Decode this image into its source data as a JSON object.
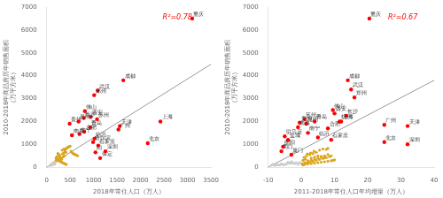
{
  "chart_data": [
    {
      "type": "scatter",
      "xlabel": "2018年常住人口（万人）",
      "ylabel": "2010-2018年商品房历年销售面积\n（万平方米）",
      "xlim": [
        0,
        3500
      ],
      "ylim": [
        0,
        7000
      ],
      "xticks": [
        0,
        500,
        1000,
        1500,
        2000,
        2500,
        3000,
        3500
      ],
      "yticks": [
        0,
        1000,
        2000,
        3000,
        4000,
        5000,
        6000,
        7000
      ],
      "grid": false,
      "series": [
        {
          "color": "#cccccc",
          "x": [
            100,
            120,
            130,
            140,
            150,
            160,
            170,
            80,
            90,
            110,
            125,
            135,
            145,
            155,
            165,
            175,
            85,
            95,
            105,
            115
          ],
          "values": [
            100,
            150,
            120,
            200,
            180,
            160,
            130,
            80,
            90,
            110,
            140,
            170,
            190,
            200,
            210,
            220,
            100,
            120,
            130,
            140
          ]
        },
        {
          "color": "#DAA520",
          "x": [
            200,
            250,
            300,
            180,
            220,
            280,
            350,
            310,
            260,
            290,
            320,
            380,
            240,
            270,
            230,
            210,
            340,
            360,
            390,
            410,
            150,
            170,
            330,
            370,
            400,
            420,
            440,
            460,
            480,
            500,
            520,
            540,
            560,
            580,
            600,
            620,
            640,
            660,
            200,
            220,
            240,
            260,
            280,
            300,
            320,
            340,
            360,
            380,
            400,
            420
          ],
          "values": [
            300,
            350,
            280,
            200,
            400,
            500,
            450,
            380,
            320,
            420,
            350,
            500,
            600,
            550,
            480,
            430,
            580,
            620,
            700,
            650,
            150,
            180,
            750,
            800,
            780,
            820,
            850,
            880,
            900,
            920,
            700,
            650,
            600,
            580,
            560,
            540,
            520,
            500,
            400,
            350,
            300,
            280,
            260,
            240,
            220,
            200,
            180,
            160,
            140,
            120
          ]
        },
        {
          "type": "line",
          "color": "#999999",
          "x": [
            0,
            3500
          ],
          "values": [
            0,
            4500
          ]
        },
        {
          "color": "red",
          "x": [
            3101,
            1633,
            1089,
            1013,
            815,
            940,
            1074,
            792,
            680,
            490,
            540,
            1560,
            1530,
            2424,
            929,
            800,
            700,
            1020,
            990,
            1100,
            1253,
            1040,
            1140,
            2154
          ],
          "values": [
            6500,
            3800,
            3350,
            3150,
            2450,
            2200,
            2100,
            2150,
            2000,
            1900,
            1400,
            1800,
            1650,
            2000,
            1750,
            1550,
            1450,
            1250,
            1100,
            950,
            700,
            650,
            400,
            1050
          ],
          "point_labels": [
            "重庆",
            "成都",
            "武汉",
            "郑州",
            "佛山",
            "西安",
            "苏州",
            "长沙",
            "昆明",
            "贵州",
            "南昌",
            "天津",
            "广州",
            "上海",
            "青岛",
            "合肥",
            "南宁",
            "临沂",
            "哈尔滨",
            "石家庄",
            "深圳",
            "阳",
            "保定",
            "北京"
          ]
        }
      ],
      "annotations": [
        {
          "text": "R²=0.78",
          "x": 3100,
          "y": 6700,
          "color": "red"
        }
      ]
    },
    {
      "type": "scatter",
      "xlabel": "2011-2018年常住人口年均增量（万人）",
      "ylabel": "2010-2018年商品房历年销售面积\n（万平方米）",
      "xlim": [
        -10,
        40
      ],
      "ylim": [
        0,
        7000
      ],
      "xticks": [
        -10,
        0,
        10,
        20,
        30,
        40
      ],
      "yticks": [
        0,
        1000,
        2000,
        3000,
        4000,
        5000,
        6000,
        7000
      ],
      "grid": false,
      "series": [
        {
          "color": "#cccccc",
          "x": [
            -7,
            -6,
            -5,
            -4,
            -3,
            -8,
            -9,
            -2,
            -1,
            -5.5,
            -4.5,
            -3.5,
            -2.5,
            -1.5,
            -0.5,
            -6.5,
            -7.5,
            -8.5,
            -3,
            -4
          ],
          "values": [
            100,
            150,
            120,
            200,
            180,
            80,
            90,
            160,
            130,
            110,
            140,
            170,
            190,
            200,
            210,
            100,
            120,
            130,
            250,
            220
          ]
        },
        {
          "color": "#DAA520",
          "x": [
            0.5,
            1.2,
            2.0,
            3.0,
            4.0,
            5.0,
            6.0,
            7.0,
            3.5,
            2.5,
            1.5,
            0.8,
            1.8,
            2.8,
            3.8,
            4.5,
            5.5,
            6.5,
            7.5,
            8.0,
            1.0,
            2.0,
            3.0,
            4.0,
            5.0,
            6.0,
            7.0,
            8.0,
            0.2,
            1.5,
            2.5,
            3.5,
            4.5,
            5.5,
            6.5,
            7.5,
            8.5,
            9.0,
            0.5,
            1.0,
            2.0,
            3.0,
            4.0,
            5.0,
            6.0,
            7.0,
            8.0,
            9.0,
            9.5,
            10.0
          ],
          "values": [
            300,
            350,
            280,
            400,
            450,
            500,
            480,
            420,
            600,
            550,
            480,
            430,
            580,
            620,
            700,
            650,
            750,
            800,
            780,
            820,
            200,
            250,
            300,
            350,
            400,
            450,
            500,
            550,
            150,
            180,
            220,
            260,
            300,
            340,
            380,
            420,
            460,
            500,
            100,
            120,
            140,
            160,
            180,
            200,
            220,
            240,
            260,
            280,
            300,
            320
          ]
        },
        {
          "type": "line",
          "color": "#999999",
          "x": [
            -10,
            40
          ],
          "values": [
            0,
            3800
          ]
        },
        {
          "color": "red",
          "x": [
            20.5,
            14.0,
            15.0,
            16.0,
            9.5,
            10.0,
            13.5,
            1.0,
            4.0,
            11.5,
            12.0,
            -0.5,
            1.5,
            25.0,
            32.0,
            -1.0,
            8.0,
            2.0,
            -5.0,
            -4.0,
            5.0,
            9.0,
            -5.5,
            -6.0,
            -3.0,
            25.0,
            32.0
          ],
          "values": [
            6500,
            3800,
            3400,
            3050,
            2500,
            2350,
            2250,
            2100,
            2000,
            2000,
            2000,
            1950,
            1900,
            1850,
            1800,
            1750,
            1700,
            1500,
            1350,
            1200,
            1300,
            1200,
            900,
            700,
            550,
            1100,
            1000
          ],
          "point_labels": [
            "重庆",
            "成都",
            "武汉",
            "郑州",
            "佛山",
            "西安",
            "长沙",
            "苏州",
            "青岛",
            "杭州",
            "上海",
            "贵州",
            "昆明",
            "广州",
            "天津",
            "南昌",
            "合肥",
            "南宁",
            "驻马店",
            "盐城",
            "临沂",
            "石家庄",
            "南阳",
            "周口",
            "厦门",
            "北京",
            "深圳"
          ]
        }
      ],
      "annotations": [
        {
          "text": "R²=0.67",
          "x": 35,
          "y": 6700,
          "color": "red"
        }
      ]
    }
  ]
}
